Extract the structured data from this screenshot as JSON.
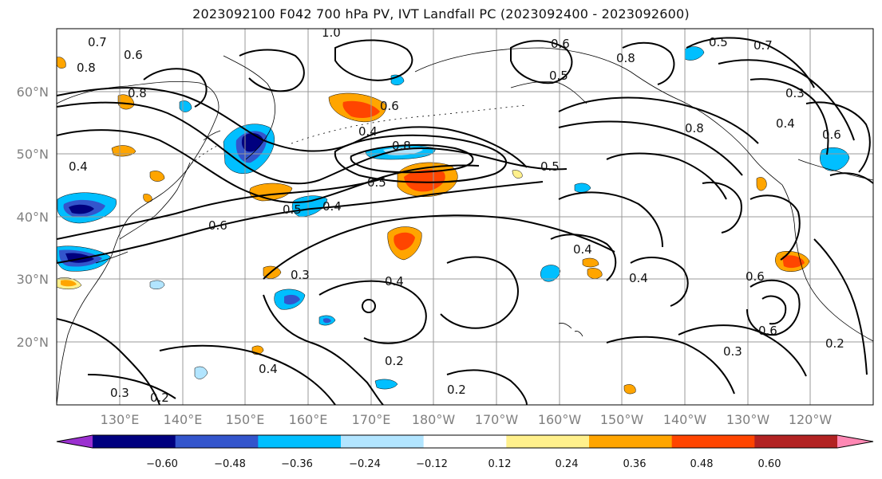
{
  "title": "2023092100 F042 700 hPa PV, IVT Landfall PC (2023092400 - 2023092600)",
  "latitude_labels": [
    "60°N",
    "50°N",
    "40°N",
    "30°N",
    "20°N"
  ],
  "longitude_labels": [
    "130°E",
    "140°E",
    "150°E",
    "160°E",
    "170°E",
    "180°W",
    "170°W",
    "160°W",
    "150°W",
    "140°W",
    "130°W",
    "120°W"
  ],
  "colorbar": {
    "ticks": [
      "−0.60",
      "−0.48",
      "−0.36",
      "−0.24",
      "−0.12",
      "0.12",
      "0.24",
      "0.36",
      "0.48",
      "0.60"
    ],
    "colors": [
      "#9b30d0",
      "#00007f",
      "#3355cc",
      "#00bfff",
      "#b2e5ff",
      "#ffffff",
      "#fff08c",
      "#ffa500",
      "#ff4500",
      "#b22222",
      "#ff88b4"
    ]
  },
  "contour_labels": [
    "0.7",
    "0.6",
    "0.8",
    "0.8",
    "1.0",
    "0.6",
    "0.4",
    "0.8",
    "0.5",
    "0.4",
    "0.6",
    "0.5",
    "0.4",
    "0.5",
    "0.6",
    "0.8",
    "0.8",
    "0.7",
    "0.5",
    "0.3",
    "0.4",
    "0.6",
    "0.5",
    "0.4",
    "0.4",
    "0.6",
    "0.6",
    "0.3",
    "0.2",
    "0.3",
    "0.4",
    "0.2",
    "0.2",
    "0.4",
    "0.3",
    "0.2"
  ]
}
